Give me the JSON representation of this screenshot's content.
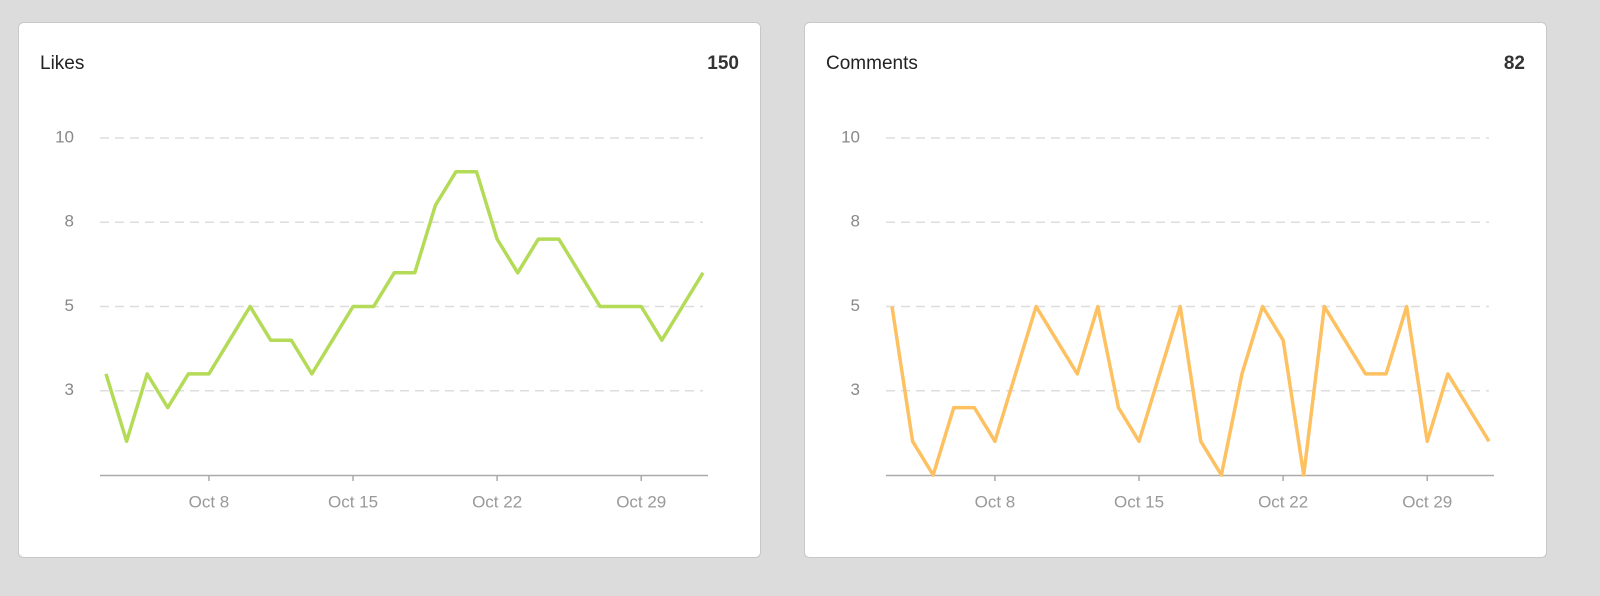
{
  "chart_data": [
    {
      "type": "line",
      "title": "Likes",
      "total": 150,
      "color": "#b4db57",
      "x": [
        "Oct 3",
        "Oct 4",
        "Oct 5",
        "Oct 6",
        "Oct 7",
        "Oct 8",
        "Oct 9",
        "Oct 10",
        "Oct 11",
        "Oct 12",
        "Oct 13",
        "Oct 14",
        "Oct 15",
        "Oct 16",
        "Oct 17",
        "Oct 18",
        "Oct 19",
        "Oct 20",
        "Oct 21",
        "Oct 22",
        "Oct 23",
        "Oct 24",
        "Oct 25",
        "Oct 26",
        "Oct 27",
        "Oct 28",
        "Oct 29",
        "Oct 30",
        "Oct 31",
        "Nov 1"
      ],
      "values": [
        3,
        1,
        3,
        2,
        3,
        3,
        4,
        5,
        4,
        4,
        3,
        4,
        5,
        5,
        6,
        6,
        8,
        9,
        9,
        7,
        6,
        7,
        7,
        6,
        5,
        5,
        5,
        4,
        5,
        6
      ],
      "ylim": [
        0,
        10
      ],
      "yticks": [
        {
          "value": 2.5,
          "label": "3"
        },
        5,
        {
          "value": 7.5,
          "label": "8"
        },
        10
      ],
      "xticks": [
        "Oct 8",
        "Oct 15",
        "Oct 22",
        "Oct 29"
      ],
      "grid": true
    },
    {
      "type": "line",
      "title": "Comments",
      "total": 82,
      "color": "#fdc161",
      "x": [
        "Oct 3",
        "Oct 4",
        "Oct 5",
        "Oct 6",
        "Oct 7",
        "Oct 8",
        "Oct 9",
        "Oct 10",
        "Oct 11",
        "Oct 12",
        "Oct 13",
        "Oct 14",
        "Oct 15",
        "Oct 16",
        "Oct 17",
        "Oct 18",
        "Oct 19",
        "Oct 20",
        "Oct 21",
        "Oct 22",
        "Oct 23",
        "Oct 24",
        "Oct 25",
        "Oct 26",
        "Oct 27",
        "Oct 28",
        "Oct 29",
        "Oct 30",
        "Oct 31",
        "Nov 1"
      ],
      "values": [
        5,
        1,
        0,
        2,
        2,
        1,
        3,
        5,
        4,
        3,
        5,
        2,
        1,
        3,
        5,
        1,
        0,
        3,
        5,
        4,
        0,
        5,
        4,
        3,
        3,
        5,
        1,
        3,
        2,
        1
      ],
      "ylim": [
        0,
        10
      ],
      "yticks": [
        {
          "value": 2.5,
          "label": "3"
        },
        5,
        {
          "value": 7.5,
          "label": "8"
        },
        10
      ],
      "xticks": [
        "Oct 8",
        "Oct 15",
        "Oct 22",
        "Oct 29"
      ],
      "grid": true
    }
  ]
}
